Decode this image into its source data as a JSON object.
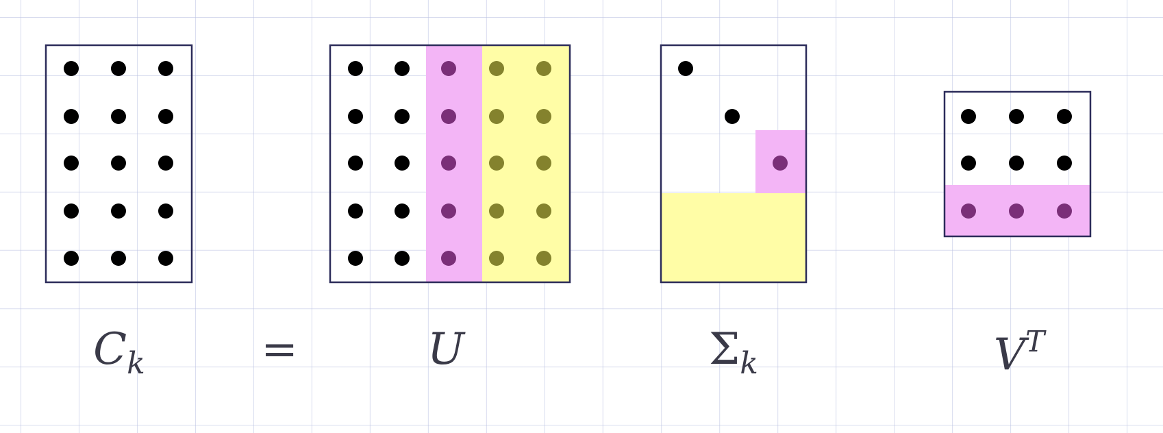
{
  "labels": {
    "c_main": "C",
    "c_sub": "k",
    "equals": "=",
    "u": "U",
    "sigma_main": "Σ",
    "sigma_sub": "k",
    "v_main": "V",
    "v_sup": "T"
  },
  "colors": {
    "frame": "#2c2c5a",
    "dot": "#000000",
    "highlight_pink": "#f3b5f6",
    "highlight_yellow": "#fffda6",
    "dot_on_pink": "#7a2f78",
    "dot_on_yellow": "#84822d"
  },
  "matrices": {
    "c_k": {
      "rows": 5,
      "cols": 3,
      "dots": "all"
    },
    "u": {
      "rows": 5,
      "cols": 5,
      "pink_columns": [
        3
      ],
      "yellow_columns": [
        4,
        5
      ]
    },
    "sigma_k": {
      "rows": 5,
      "cols": 3,
      "diagonal_dots": 3,
      "pink_cell": [
        3,
        3
      ],
      "yellow_rows": [
        4,
        5
      ]
    },
    "v_t": {
      "rows": 3,
      "cols": 3,
      "pink_rows": [
        3
      ]
    }
  }
}
